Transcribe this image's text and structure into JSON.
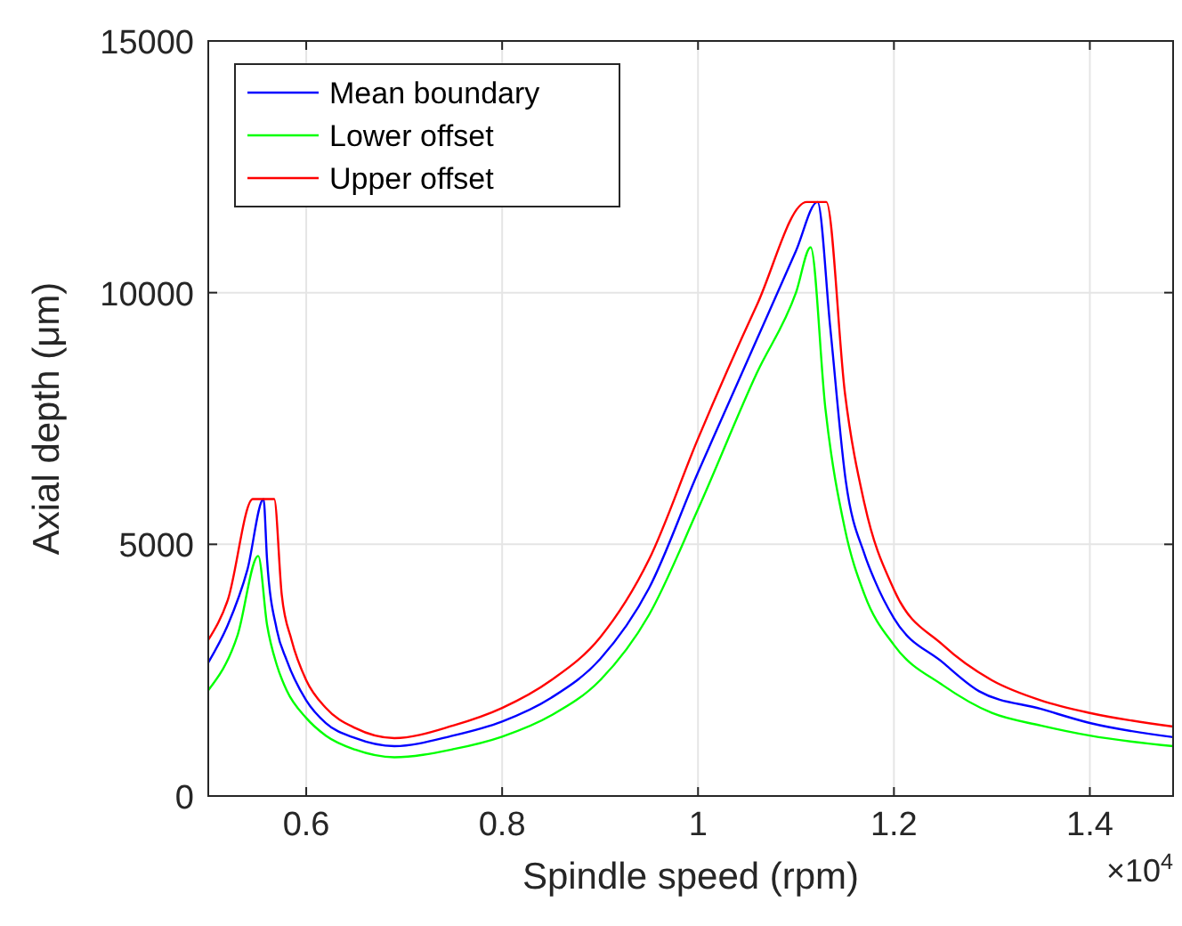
{
  "chart_data": {
    "type": "line",
    "xlabel": "Spindle speed (rpm)",
    "ylabel": "Axial depth (μm)",
    "xlim": [
      0.5,
      1.485
    ],
    "xticks": [
      0.6,
      0.8,
      1,
      1.2,
      1.4
    ],
    "ylim": [
      0,
      15000
    ],
    "yticks": [
      0,
      5000,
      10000,
      15000
    ],
    "grid": true,
    "legend": "top left",
    "marker": "none",
    "line_style": "solid",
    "annotations": [
      "×10$^{4}$"
    ],
    "series": [
      {
        "name": "Mean boundary",
        "color": "#0000ff",
        "x": [
          0.5,
          0.52,
          0.54,
          0.5564,
          0.56,
          0.57,
          0.58,
          0.6,
          0.62,
          0.65,
          0.69,
          0.75,
          0.8,
          0.85,
          0.9,
          0.95,
          1,
          1.0145,
          1.06,
          1.1,
          1.122,
          1.135,
          1.1509,
          1.17,
          1.18,
          1.2,
          1.25,
          1.287,
          1.35,
          1.4,
          1.485
        ],
        "values": [
          2650,
          3400,
          4500,
          5900,
          4700,
          3300,
          2700,
          1900,
          1450,
          1150,
          990,
          1200,
          1480,
          1950,
          2720,
          4130,
          6430,
          7070,
          9070,
          10830,
          11800,
          9300,
          6250,
          4800,
          4300,
          3530,
          2650,
          2080,
          1730,
          1450,
          1170
        ]
      },
      {
        "name": "Lower offset",
        "color": "#00ff00",
        "x": [
          0.5,
          0.53,
          0.551,
          0.56,
          0.57,
          0.58,
          0.6,
          0.62,
          0.65,
          0.69,
          0.75,
          0.8,
          0.85,
          0.9,
          0.95,
          1,
          1.06,
          1.1,
          1.115,
          1.13,
          1.15,
          1.17,
          1.2,
          1.25,
          1.3,
          1.35,
          1.4,
          1.485
        ],
        "values": [
          2100,
          3200,
          4770,
          3400,
          2600,
          2100,
          1550,
          1200,
          920,
          770,
          930,
          1180,
          1600,
          2300,
          3600,
          5700,
          8400,
          10000,
          10900,
          7700,
          5300,
          4000,
          3000,
          2200,
          1650,
          1400,
          1200,
          990
        ]
      },
      {
        "name": "Upper offset",
        "color": "#ff0000",
        "x": [
          0.5,
          0.52,
          0.5455,
          0.5673,
          0.575,
          0.585,
          0.6,
          0.62,
          0.65,
          0.69,
          0.75,
          0.8,
          0.85,
          0.9,
          0.95,
          1,
          1.06,
          1.111,
          1.131,
          1.15,
          1.17,
          1.2,
          1.25,
          1.3,
          1.35,
          1.4,
          1.485
        ],
        "values": [
          3100,
          3900,
          5900,
          5900,
          4000,
          3100,
          2300,
          1750,
          1350,
          1150,
          1400,
          1750,
          2300,
          3150,
          4700,
          7100,
          9750,
          11800,
          11800,
          8000,
          5800,
          4100,
          3000,
          2300,
          1900,
          1650,
          1380
        ]
      }
    ]
  }
}
